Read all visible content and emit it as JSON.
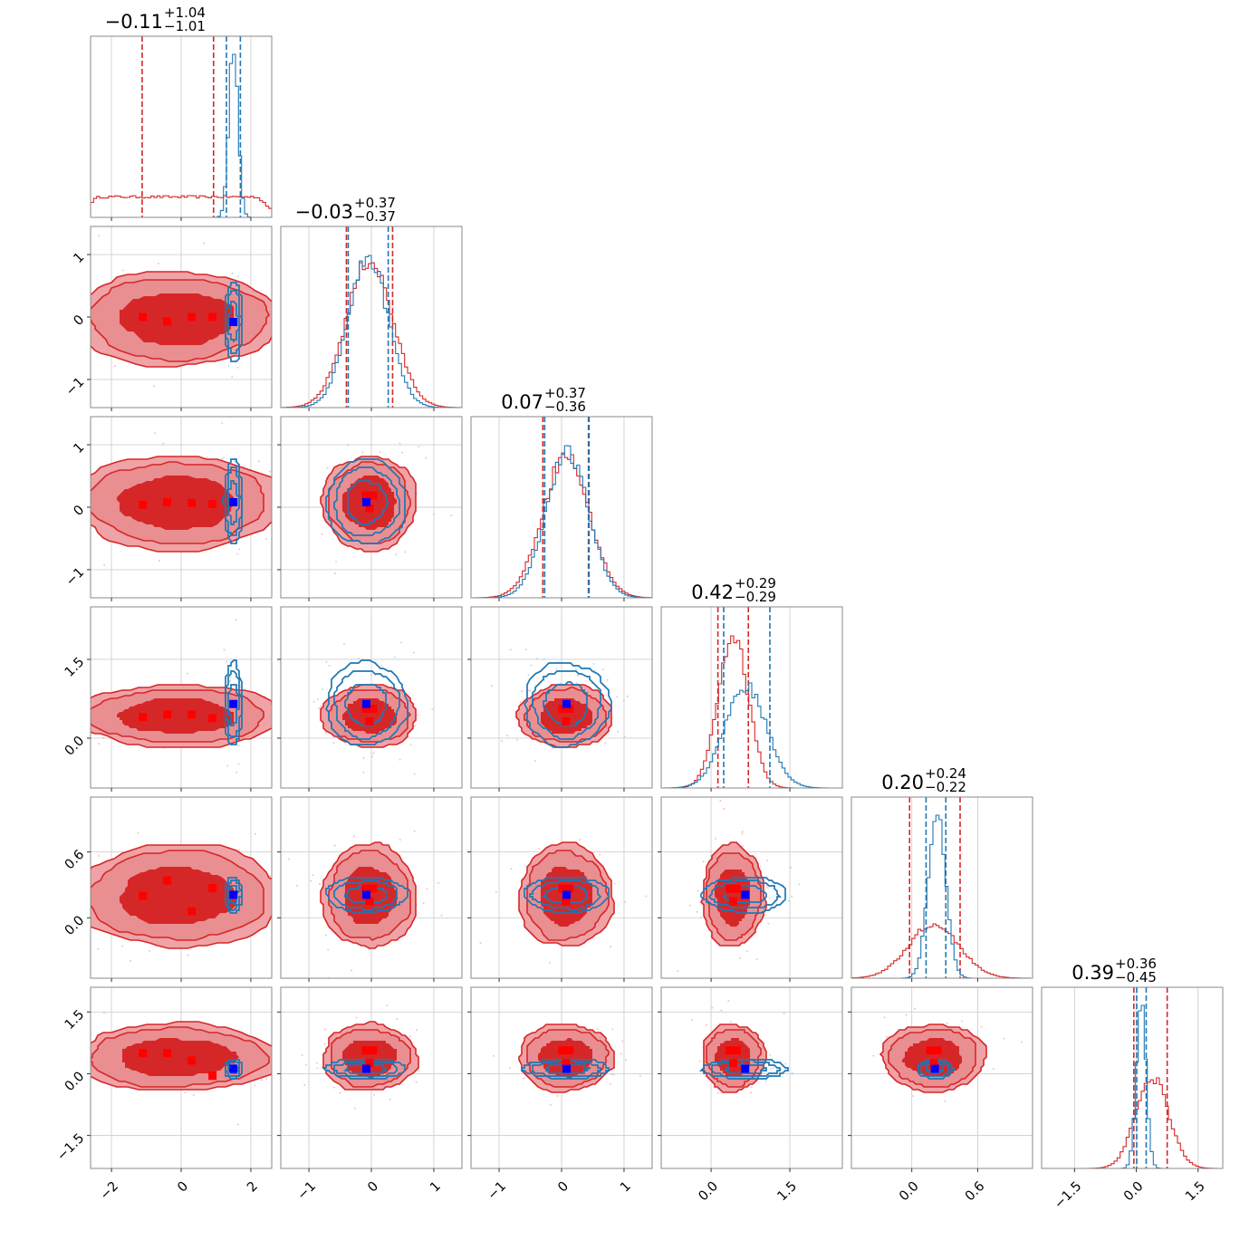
{
  "chart_data": {
    "type": "corner",
    "n_params": 6,
    "series": [
      {
        "name": "",
        "color": "#d62728"
      },
      {
        "name": "",
        "color": "#1f77b4"
      }
    ],
    "marker_colors": {
      "series_a": "#ff0000",
      "series_b": "#0000ff"
    },
    "axis_ranges": [
      [
        -2.6,
        2.6
      ],
      [
        -1.45,
        1.45
      ],
      [
        -1.45,
        1.45
      ],
      [
        -0.95,
        2.5
      ],
      [
        -0.55,
        1.1
      ],
      [
        -2.3,
        2.1
      ]
    ],
    "axis_ticks": [
      {
        "values": [
          -2,
          0,
          2
        ],
        "labels": [
          "−2",
          "0",
          "2"
        ],
        "y_values": [],
        "y_labels": []
      },
      {
        "values": [
          -1,
          0,
          1
        ],
        "labels": [
          "−1",
          "0",
          "1"
        ],
        "y_values": [
          1,
          0,
          -1
        ],
        "y_labels": [
          "1",
          "0",
          "−1"
        ]
      },
      {
        "values": [
          -1,
          0,
          1
        ],
        "labels": [
          "−1",
          "0",
          "1"
        ],
        "y_values": [
          1,
          0,
          -1
        ],
        "y_labels": [
          "1",
          "0",
          "−1"
        ]
      },
      {
        "values": [
          0.0,
          1.5
        ],
        "labels": [
          "0.0",
          "1.5"
        ],
        "y_values": [
          1.5,
          0.0
        ],
        "y_labels": [
          "1.5",
          "0.0"
        ]
      },
      {
        "values": [
          0.0,
          0.6
        ],
        "labels": [
          "0.0",
          "0.6"
        ],
        "y_values": [
          0.6,
          0.0
        ],
        "y_labels": [
          "0.6",
          "0.0"
        ]
      },
      {
        "values": [
          -1.5,
          0.0,
          1.5
        ],
        "labels": [
          "−1.5",
          "0.0",
          "1.5"
        ],
        "y_values": [
          1.5,
          0.0,
          -1.5
        ],
        "y_labels": [
          "1.5",
          "0.0",
          "−1.5"
        ]
      }
    ],
    "titles": [
      {
        "median": "−0.11",
        "plus": "+1.04",
        "minus": "−1.01"
      },
      {
        "median": "−0.03",
        "plus": "+0.37",
        "minus": "−0.37"
      },
      {
        "median": "0.07",
        "plus": "+0.37",
        "minus": "−0.36"
      },
      {
        "median": "0.42",
        "plus": "+0.29",
        "minus": "−0.29"
      },
      {
        "median": "0.20",
        "plus": "+0.24",
        "minus": "−0.22"
      },
      {
        "median": "0.39",
        "plus": "+0.36",
        "minus": "−0.45"
      }
    ],
    "marginals": [
      {
        "a": {
          "center": -0.1,
          "sd": 1.0,
          "uniform": true
        },
        "b": {
          "center": 1.5,
          "sd": 0.13
        },
        "a_quantiles": [
          -1.12,
          0.93
        ],
        "b_quantiles": [
          1.3,
          1.7
        ]
      },
      {
        "a": {
          "center": -0.03,
          "sd": 0.37
        },
        "b": {
          "center": -0.05,
          "sd": 0.32
        },
        "a_quantiles": [
          -0.4,
          0.34
        ],
        "b_quantiles": [
          -0.37,
          0.27
        ]
      },
      {
        "a": {
          "center": 0.07,
          "sd": 0.37
        },
        "b": {
          "center": 0.09,
          "sd": 0.34
        },
        "a_quantiles": [
          -0.3,
          0.44
        ],
        "b_quantiles": [
          -0.27,
          0.43
        ]
      },
      {
        "a": {
          "center": 0.42,
          "sd": 0.29
        },
        "b": {
          "center": 0.66,
          "sd": 0.4
        },
        "a_quantiles": [
          0.13,
          0.71
        ],
        "b_quantiles": [
          0.24,
          1.12
        ]
      },
      {
        "a": {
          "center": 0.2,
          "sd": 0.23
        },
        "b": {
          "center": 0.23,
          "sd": 0.08
        },
        "a_quantiles": [
          -0.02,
          0.44
        ],
        "b_quantiles": [
          0.13,
          0.31
        ]
      },
      {
        "a": {
          "center": 0.39,
          "sd": 0.4
        },
        "b": {
          "center": 0.12,
          "sd": 0.12
        },
        "a_quantiles": [
          -0.06,
          0.75
        ],
        "b_quantiles": [
          0.01,
          0.24
        ]
      }
    ],
    "medians_a": [
      -0.11,
      -0.03,
      0.07,
      0.42,
      0.2,
      0.39
    ],
    "medians_b": [
      1.5,
      -0.08,
      0.08,
      0.65,
      0.21,
      0.12
    ],
    "red_markers": [
      [
        [
          -1.1,
          0.0
        ],
        [
          -0.4,
          -0.07
        ],
        [
          0.3,
          0.0
        ],
        [
          0.9,
          0.0
        ]
      ],
      [
        [
          -1.1,
          0.04
        ],
        [
          -0.4,
          0.08
        ],
        [
          0.3,
          0.07
        ],
        [
          0.9,
          0.05
        ]
      ],
      [
        [
          -1.1,
          0.4
        ],
        [
          -0.4,
          0.45
        ],
        [
          0.3,
          0.45
        ],
        [
          0.9,
          0.38
        ]
      ],
      [
        [
          -1.1,
          0.2
        ],
        [
          -0.4,
          0.34
        ],
        [
          0.3,
          0.06
        ],
        [
          0.9,
          0.27
        ]
      ],
      [
        [
          -1.1,
          0.5
        ],
        [
          -0.4,
          0.5
        ],
        [
          0.3,
          0.32
        ],
        [
          0.9,
          -0.05
        ]
      ]
    ],
    "grid": true
  }
}
